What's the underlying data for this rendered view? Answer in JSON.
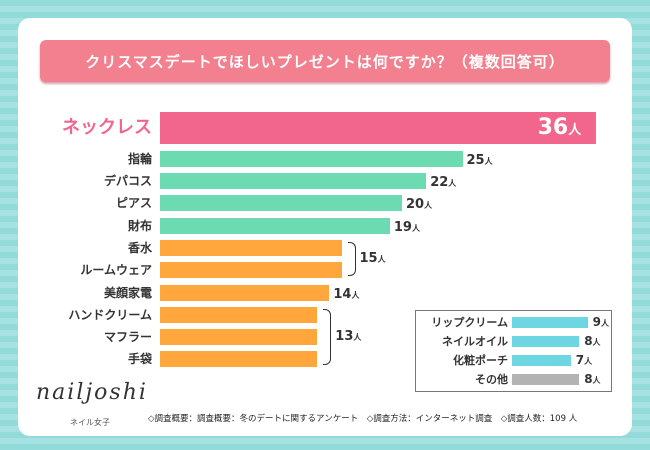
{
  "title": "クリスマスデートでほしいプレゼントは何ですか？（複数回答可）",
  "unit": "人",
  "colors": {
    "top": "#f2668e",
    "green": "#6ddbb2",
    "orange": "#ffa63d",
    "cyan": "#6dd6e2",
    "gray": "#b3b3b3",
    "banner": "#f2808f"
  },
  "chart_data": {
    "type": "bar",
    "orientation": "horizontal",
    "title": "クリスマスデートでほしいプレゼントは何ですか？（複数回答可）",
    "categories": [
      "ネックレス",
      "指輪",
      "デパコス",
      "ピアス",
      "財布",
      "香水",
      "ルームウェア",
      "美顔家電",
      "ハンドクリーム",
      "マフラー",
      "手袋"
    ],
    "values": [
      36,
      25,
      22,
      20,
      19,
      15,
      15,
      14,
      13,
      13,
      13
    ],
    "groups": [
      {
        "label": "15",
        "items": [
          "香水",
          "ルームウェア"
        ]
      },
      {
        "label": "13",
        "items": [
          "ハンドクリーム",
          "マフラー",
          "手袋"
        ]
      }
    ],
    "inset": {
      "categories": [
        "リップクリーム",
        "ネイルオイル",
        "化粧ポーチ",
        "その他"
      ],
      "values": [
        9,
        8,
        7,
        8
      ]
    }
  },
  "logo": {
    "text": "nailjoshi",
    "sub": "ネイル女子"
  },
  "footer": "◇調査概要：調査概要：冬のデートに関するアンケート　◇調査方法：インターネット調査　◇調査人数：109 人"
}
